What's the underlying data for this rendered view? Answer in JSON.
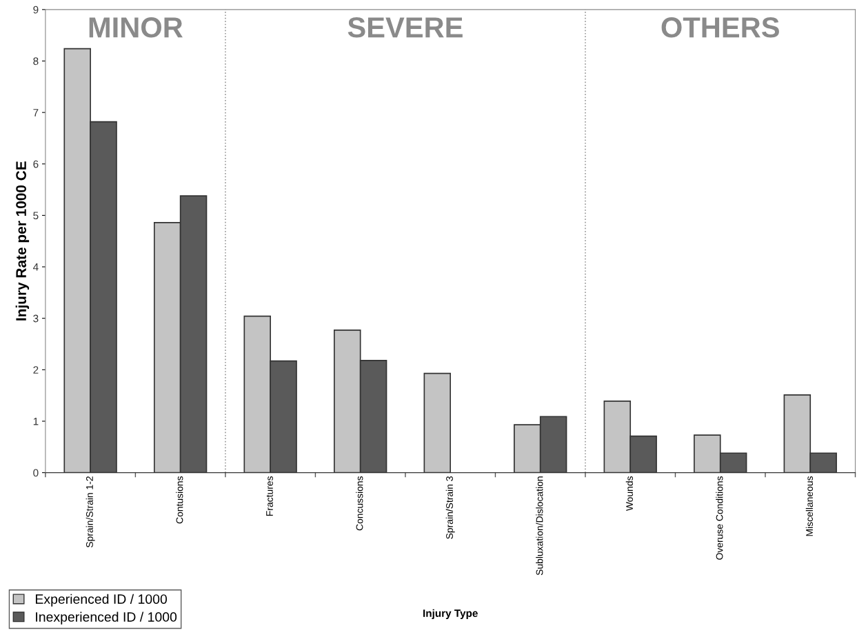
{
  "chart_data": {
    "type": "bar",
    "xlabel": "Injury Type",
    "ylabel": "Injury Rate per 1000 CE",
    "categories": [
      "Sprain/Strain 1-2",
      "Contusions",
      "Fractures",
      "Concussions",
      "Sprain/Strain 3",
      "Subluxation/Dislocation",
      "Wounds",
      "Overuse Conditions",
      "Miscellaneous"
    ],
    "series": [
      {
        "name": "Experienced ID / 1000",
        "color": "#c4c4c4",
        "values": [
          8.24,
          4.86,
          3.04,
          2.77,
          1.93,
          0.93,
          1.39,
          0.73,
          1.51
        ]
      },
      {
        "name": "Inexperienced ID / 1000",
        "color": "#5a5a5a",
        "values": [
          6.82,
          5.38,
          2.17,
          2.18,
          0,
          1.09,
          0.71,
          0.38,
          0.38
        ]
      }
    ],
    "ylim": [
      0,
      9
    ],
    "yticks": [
      0,
      1,
      2,
      3,
      4,
      5,
      6,
      7,
      8,
      9
    ],
    "annotations": [
      "MINOR",
      "SEVERE",
      "OTHERS"
    ],
    "grid": false,
    "legend": "bottom left"
  }
}
